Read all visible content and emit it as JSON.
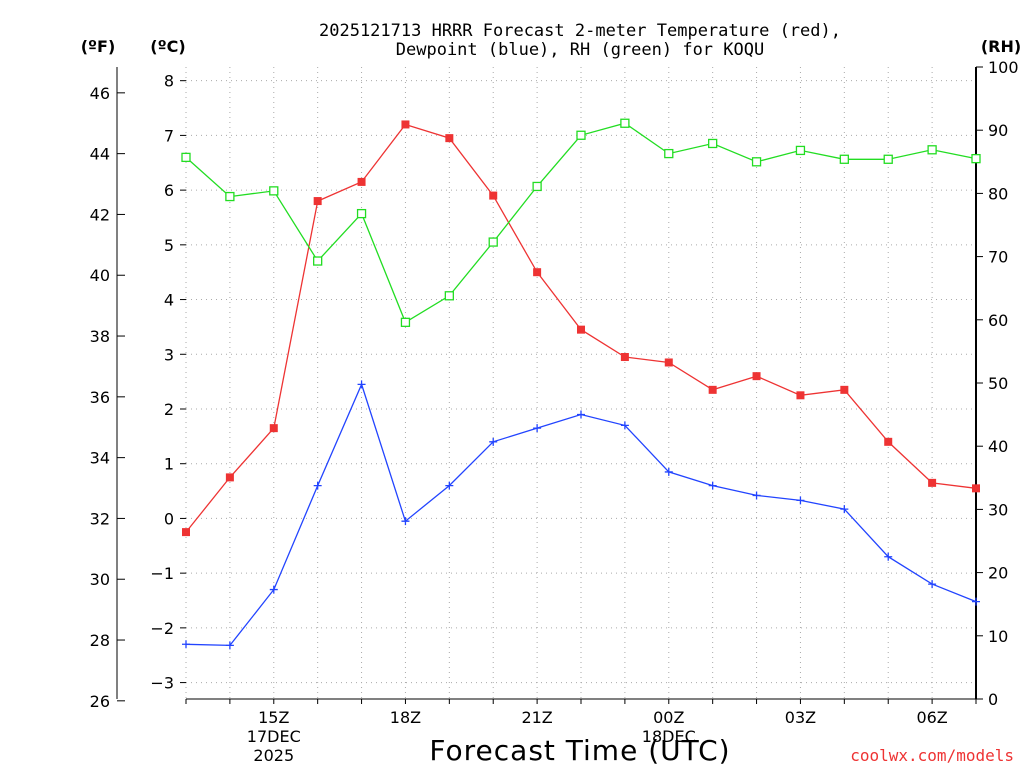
{
  "chart_data": {
    "type": "line",
    "title_line1": "2025121713 HRRR Forecast 2-meter Temperature (red),",
    "title_line2": "Dewpoint (blue), RH (green) for KOQU",
    "xlabel": "Forecast Time (UTC)",
    "credit": "coolwx.com/models",
    "unit_f": "(ºF)",
    "unit_c": "(ºC)",
    "unit_rh": "(RH)",
    "x": [
      13,
      14,
      15,
      16,
      17,
      18,
      19,
      20,
      21,
      22,
      23,
      24,
      25,
      26,
      27,
      28,
      29,
      30,
      31
    ],
    "xlim": [
      13,
      31
    ],
    "x_ticks": [
      {
        "x": 15,
        "label": "15Z",
        "sub1": "17DEC",
        "sub2": "2025"
      },
      {
        "x": 18,
        "label": "18Z",
        "sub1": "",
        "sub2": ""
      },
      {
        "x": 21,
        "label": "21Z",
        "sub1": "",
        "sub2": ""
      },
      {
        "x": 24,
        "label": "00Z",
        "sub1": "18DEC",
        "sub2": ""
      },
      {
        "x": 27,
        "label": "03Z",
        "sub1": "",
        "sub2": ""
      },
      {
        "x": 30,
        "label": "06Z",
        "sub1": "",
        "sub2": ""
      }
    ],
    "ylim_c": [
      -3.3,
      8.25
    ],
    "c_ticks": [
      -3,
      -2,
      -1,
      0,
      1,
      2,
      3,
      4,
      5,
      6,
      7,
      8
    ],
    "f_ticks": [
      26,
      28,
      30,
      32,
      34,
      36,
      38,
      40,
      42,
      44,
      46
    ],
    "rh_ticks": [
      0,
      10,
      20,
      30,
      40,
      50,
      60,
      70,
      80,
      90,
      100
    ],
    "series": [
      {
        "name": "Temperature",
        "units": "C",
        "color": "#ee3333",
        "marker": "filled-square",
        "values": [
          -0.25,
          0.75,
          1.65,
          5.8,
          6.15,
          7.2,
          6.95,
          5.9,
          4.5,
          3.45,
          2.95,
          2.85,
          2.35,
          2.6,
          2.25,
          2.35,
          1.4,
          0.65,
          0.55
        ]
      },
      {
        "name": "Dewpoint",
        "units": "C",
        "color": "#2244ff",
        "marker": "plus",
        "values": [
          -2.3,
          -2.32,
          -1.3,
          0.6,
          2.45,
          -0.05,
          0.6,
          1.4,
          1.65,
          1.9,
          1.7,
          0.85,
          0.6,
          0.42,
          0.33,
          0.17,
          -0.7,
          -1.2,
          -1.52
        ]
      },
      {
        "name": "RH",
        "units": "%",
        "color": "#22dd22",
        "marker": "open-square",
        "values": [
          85.7,
          79.5,
          80.4,
          69.3,
          76.8,
          59.6,
          63.8,
          72.3,
          81.1,
          89.2,
          91.1,
          86.3,
          87.9,
          85.0,
          86.8,
          85.4,
          85.4,
          86.9,
          85.5
        ]
      }
    ]
  }
}
